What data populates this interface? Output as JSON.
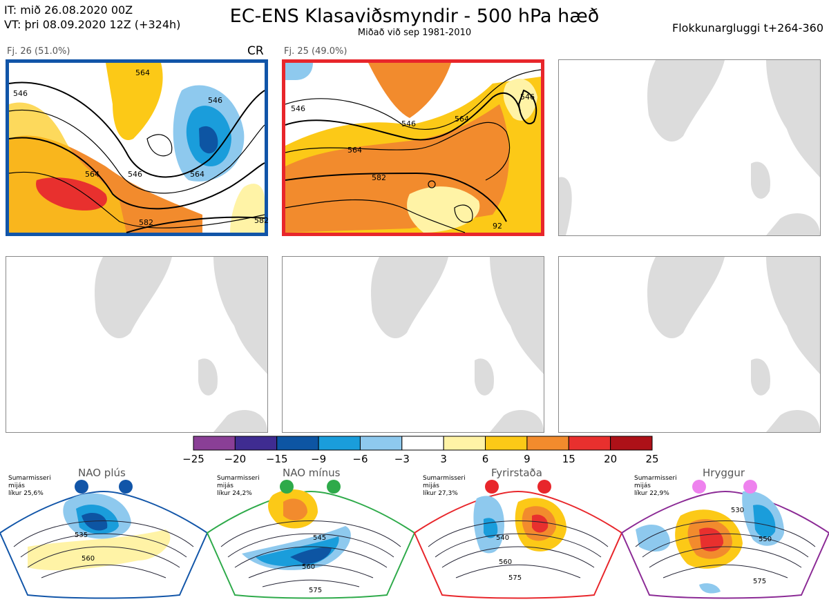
{
  "header": {
    "it_line": "IT: mið 26.08.2020 00Z",
    "vt_line": "VT: þri 08.09.2020 12Z  (+324h)",
    "title": "EC-ENS Klasaviðsmyndir - 500 hPa hæð",
    "subtitle": "Miðað við sep 1981-2010",
    "window": "Flokkunargluggi t+264-360"
  },
  "clusters": [
    {
      "label": "Fj. 26 (51.0%)",
      "regime_code": "CR",
      "regime_color": "#1155a8",
      "contours": [
        "546",
        "564",
        "546",
        "582",
        "564",
        "582",
        "546",
        "564"
      ]
    },
    {
      "label": "Fj. 25 (49.0%)",
      "regime_color": "#e8262b",
      "contours": [
        "546",
        "546",
        "564",
        "564",
        "582",
        "546",
        "92"
      ]
    }
  ],
  "colorbar": {
    "ticks": [
      "−25",
      "−20",
      "−15",
      "−9",
      "−6",
      "−3",
      "3",
      "6",
      "9",
      "15",
      "20",
      "25"
    ],
    "colors": [
      "#8a3f96",
      "#3f2c91",
      "#0d55a3",
      "#1a9ddb",
      "#8ec9ee",
      "#ffffff",
      "#fff3a6",
      "#fcc917",
      "#f28b2d",
      "#e8302e",
      "#ad1118"
    ]
  },
  "regimes": [
    {
      "name": "NAO plús",
      "info": [
        "Sumarmisseri",
        "mijás",
        "líkur 25,6%"
      ],
      "color": "#1155a8",
      "dot_color": "#1155a8",
      "contours": [
        "535",
        "560"
      ]
    },
    {
      "name": "NAO mínus",
      "info": [
        "Sumarmisseri",
        "mijás",
        "líkur 24,2%"
      ],
      "color": "#2eaa4a",
      "dot_color": "#2eaa4a",
      "contours": [
        "545",
        "560",
        "575"
      ]
    },
    {
      "name": "Fyrirstaða",
      "info": [
        "Sumarmisseri",
        "mijás",
        "líkur 27,3%"
      ],
      "color": "#e8262b",
      "dot_color": "#e8262b",
      "contours": [
        "540",
        "560",
        "575"
      ]
    },
    {
      "name": "Hryggur",
      "info": [
        "Sumarmisseri",
        "mijás",
        "líkur 22,9%"
      ],
      "color": "#8b2a95",
      "dot_color": "#ee82ee",
      "contours": [
        "530",
        "550",
        "575"
      ]
    }
  ]
}
